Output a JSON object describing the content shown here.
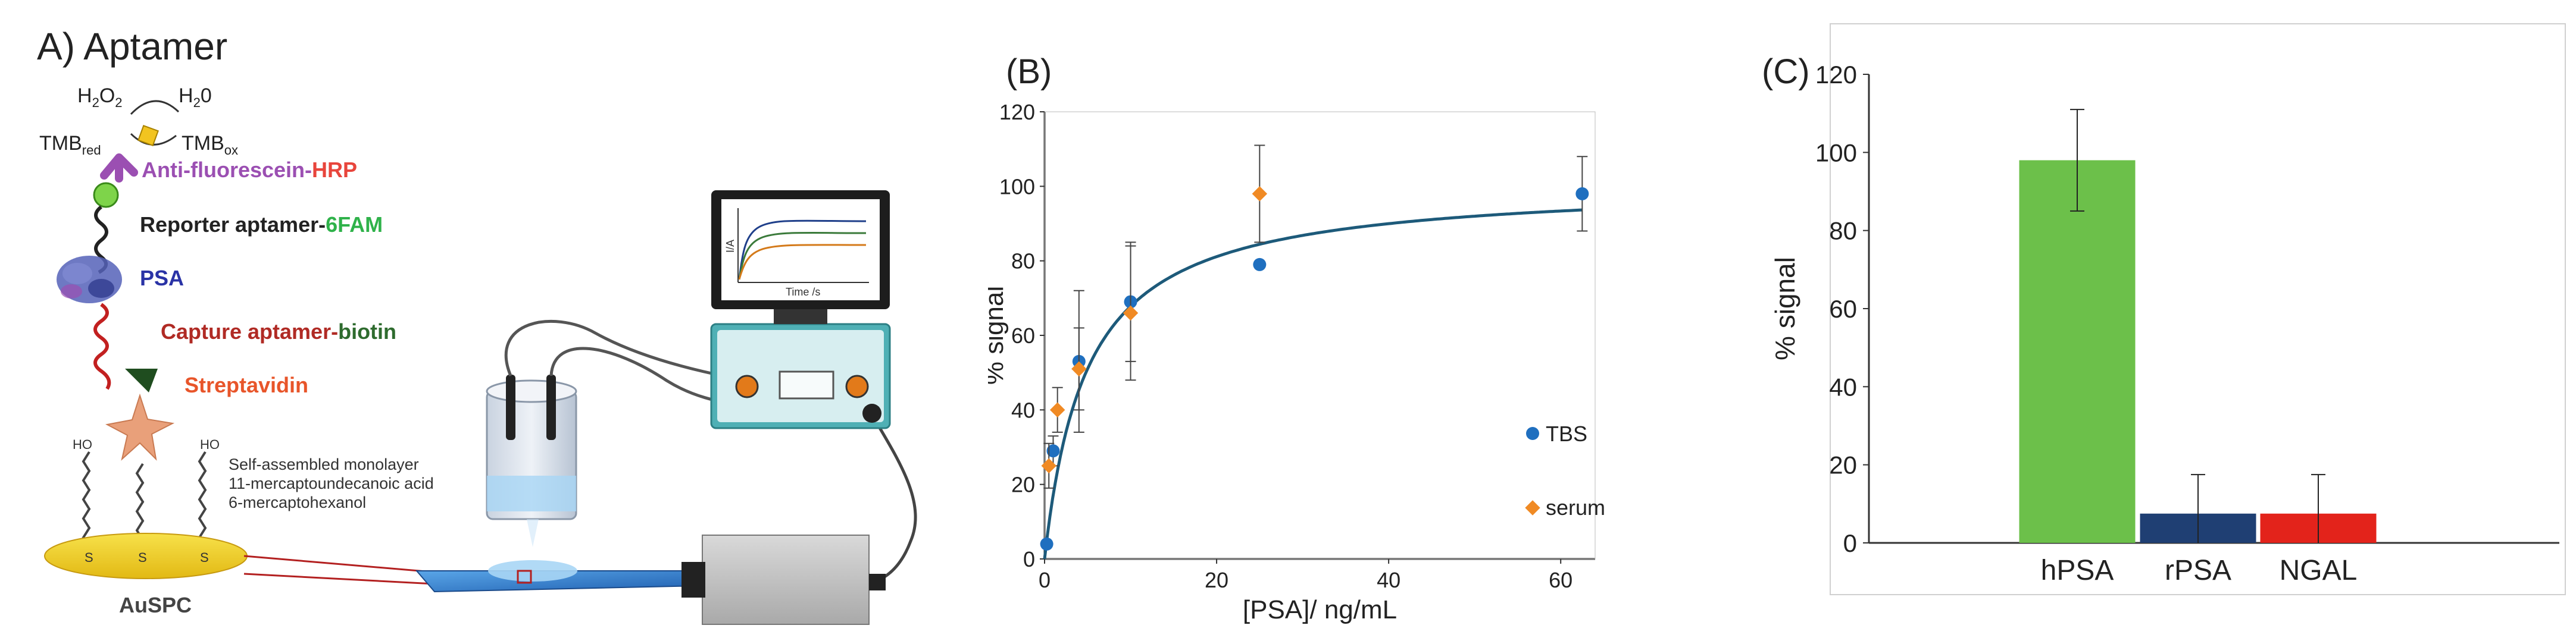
{
  "panel_a": {
    "title": "A) Aptamer",
    "h2o2_main": "H",
    "h2o2_sub1": "2",
    "h2o2_o": "O",
    "h2o2_sub2": "2",
    "h2o_main": "H",
    "h2o_sub": "2",
    "h2o_o": "0",
    "tmb_red_main": "TMB",
    "tmb_red_sub": "red",
    "tmb_ox_main": "TMB",
    "tmb_ox_sub": "ox",
    "anti_fluorescein": "Anti-fluorescein-",
    "hrp": "HRP",
    "reporter": "Reporter aptamer-",
    "sixfam": "6FAM",
    "psa": "PSA",
    "capture": "Capture aptamer-",
    "biotin": "biotin",
    "streptavidin": "Streptavidin",
    "sam_1": "Self-assembled monolayer",
    "sam_2": "11-mercaptoundecanoic acid",
    "sam_3": "6-mercaptohexanol",
    "ho": "HO",
    "s": "S",
    "auspc": "AuSPC",
    "monitor_ylabel": "I/A",
    "monitor_xlabel": "Time /s",
    "colors": {
      "hrp": "#e8453c",
      "sixfam": "#2fb24a",
      "anti": "#9b4fb2",
      "psa": "#2a33a6",
      "capture": "#b02a24",
      "biotin": "#2e6b2e",
      "streptavidin": "#e8552a"
    }
  },
  "chart_data": [
    {
      "type": "scatter",
      "panel_label": "(B)",
      "xlabel": "[PSA]/ ng/mL",
      "ylabel": "% signal",
      "xlim": [
        0,
        64
      ],
      "ylim": [
        0,
        120
      ],
      "xticks": [
        0,
        20,
        40,
        60
      ],
      "yticks": [
        0,
        20,
        40,
        60,
        80,
        100,
        120
      ],
      "series": [
        {
          "name": "TBS",
          "color": "#1f6fbf",
          "marker": "circle",
          "x": [
            0.25,
            1,
            4,
            10,
            25,
            62.5
          ],
          "y": [
            4,
            29,
            53,
            69,
            79,
            98
          ],
          "err": [
            0,
            4,
            19,
            16,
            0,
            10
          ]
        },
        {
          "name": "serum",
          "color": "#f08a24",
          "marker": "diamond",
          "x": [
            0.5,
            1.5,
            4,
            10,
            25
          ],
          "y": [
            25,
            40,
            51,
            66,
            98
          ],
          "err": [
            6,
            6,
            11,
            18,
            13
          ]
        }
      ],
      "fit": {
        "color": "#1d5a7a",
        "vmax": 101,
        "kd": 4.9
      }
    },
    {
      "type": "bar",
      "panel_label": "(C)",
      "ylabel": "% signal",
      "categories": [
        "hPSA",
        "rPSA",
        "NGAL"
      ],
      "values": [
        98,
        7.5,
        7.5
      ],
      "err": [
        13,
        10,
        10
      ],
      "colors": [
        "#6cc04a",
        "#1f3f73",
        "#e3231b"
      ],
      "ylim": [
        0,
        120
      ],
      "yticks": [
        0,
        20,
        40,
        60,
        80,
        100,
        120
      ]
    }
  ]
}
